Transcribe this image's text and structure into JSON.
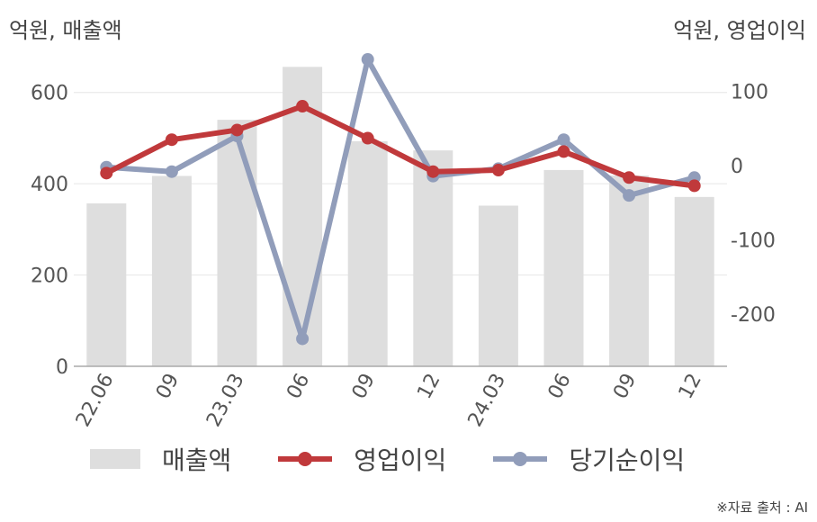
{
  "units": {
    "left": "억원, 매출액",
    "right": "억원, 영업이익"
  },
  "source": "※자료 출처 : AI",
  "colors": {
    "bar": "#dedede",
    "operating": "#c0393b",
    "net": "#919dba",
    "axis": "#aaaaaa",
    "grid": "#e6e6e6"
  },
  "chart_data": {
    "type": "bar",
    "categories": [
      "22.06",
      "09",
      "23.03",
      "06",
      "09",
      "12",
      "24.03",
      "06",
      "09",
      "12"
    ],
    "y_left": {
      "ticks": [
        0,
        200,
        400,
        600
      ],
      "range": [
        0,
        700
      ]
    },
    "y_right": {
      "ticks": [
        -200,
        -100,
        0,
        100
      ],
      "range": [
        -270,
        160
      ]
    },
    "series": [
      {
        "name": "매출액",
        "type": "bar",
        "axis": "left",
        "values": [
          357,
          417,
          540,
          656,
          493,
          473,
          352,
          430,
          418,
          371
        ]
      },
      {
        "name": "영업이익",
        "type": "line",
        "axis": "right",
        "values": [
          -10,
          35,
          48,
          80,
          37,
          -8,
          -6,
          19,
          -16,
          -27
        ]
      },
      {
        "name": "당기순이익",
        "type": "line",
        "axis": "right",
        "values": [
          -2,
          -8,
          40,
          -233,
          143,
          -14,
          -4,
          35,
          -40,
          -16
        ]
      }
    ],
    "grid": true,
    "legend": "bottom"
  }
}
